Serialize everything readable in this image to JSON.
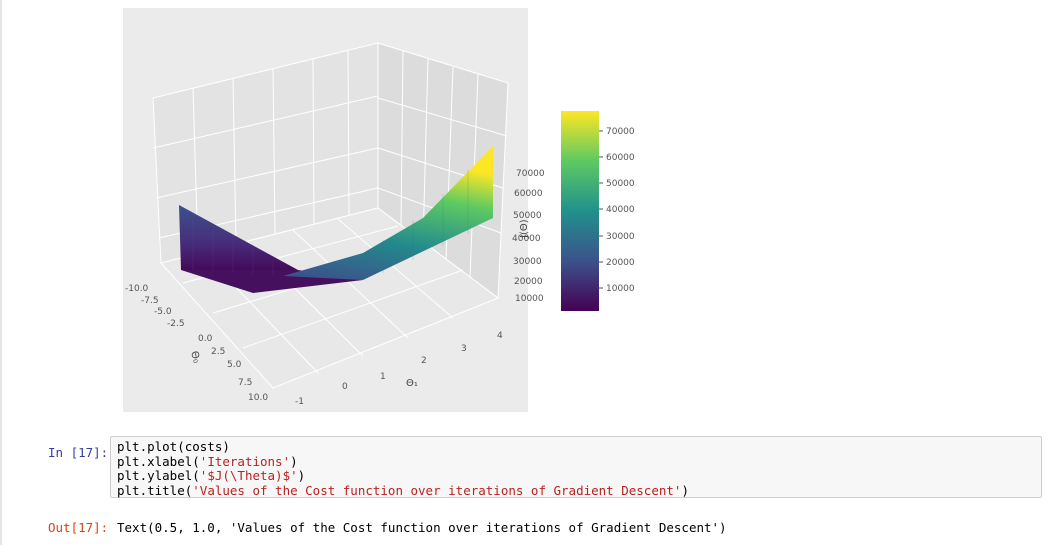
{
  "plot": {
    "z_ticks": [
      "70000",
      "60000",
      "50000",
      "40000",
      "30000",
      "20000",
      "10000"
    ],
    "theta0_ticks": [
      "-10.0",
      "-7.5",
      "-5.0",
      "-2.5",
      "0.0",
      "2.5",
      "5.0",
      "7.5",
      "10.0"
    ],
    "theta1_ticks": [
      "-1",
      "0",
      "1",
      "2",
      "3",
      "4"
    ],
    "theta0_label": "Θ₀",
    "theta1_label": "Θ₁",
    "z_label": "J(Θ)",
    "colorbar_ticks": [
      "70000",
      "60000",
      "50000",
      "40000",
      "30000",
      "20000",
      "10000"
    ],
    "colormap": [
      "#440154",
      "#3b528b",
      "#21918c",
      "#5ec962",
      "#fde725"
    ]
  },
  "cell": {
    "in_prompt": "In [17]:",
    "code": {
      "l1": "plt.plot(costs)",
      "l2a": "plt.xlabel(",
      "l2s": "'Iterations'",
      "l2b": ")",
      "l3a": "plt.ylabel(",
      "l3s": "'$J(\\Theta)$'",
      "l3b": ")",
      "l4a": "plt.title(",
      "l4s": "'Values of the Cost function over iterations of Gradient Descent'",
      "l4b": ")"
    },
    "out_prompt": "Out[17]:",
    "output": "Text(0.5, 1.0, 'Values of the Cost function over iterations of Gradient Descent')"
  }
}
